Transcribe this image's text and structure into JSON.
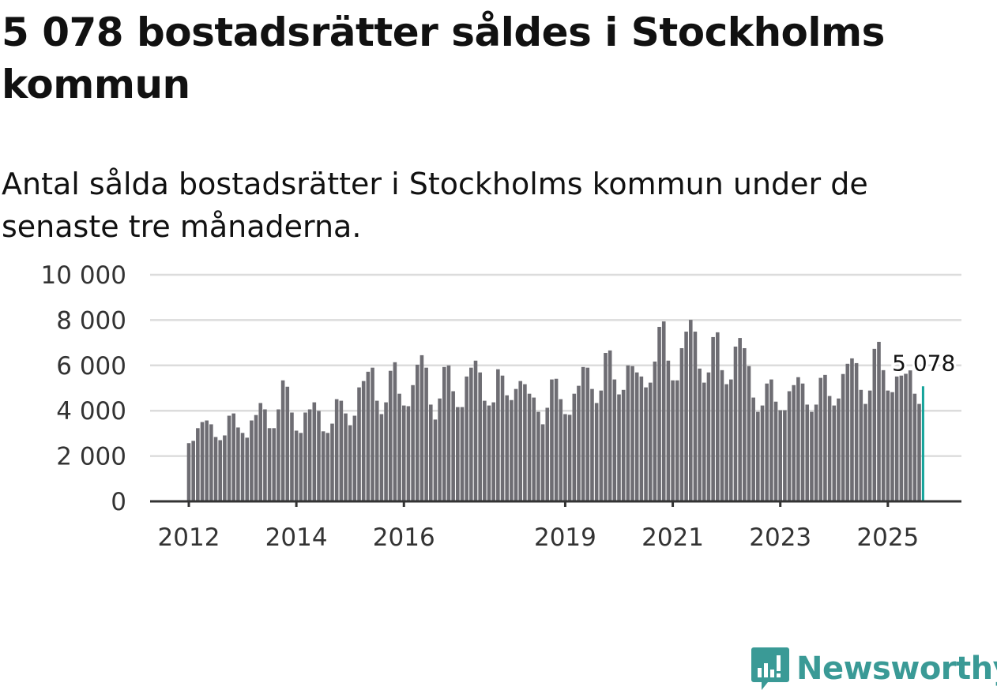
{
  "title": "5 078 bostadsrätter såldes i Stockholms kommun",
  "subtitle": "Antal sålda bostadsrätter i Stockholms kommun under de senaste tre månaderna.",
  "logo": {
    "text": "Newsworthy",
    "icon": "bar-chart-speech-bubble-icon",
    "color": "#3a9a96"
  },
  "chart_data": {
    "type": "bar",
    "title": "Antal sålda bostadsrätter i Stockholms kommun",
    "xlabel": "",
    "ylabel": "",
    "start": "2012-01",
    "frequency": "monthly",
    "ylim": [
      0,
      10000
    ],
    "yticks": [
      0,
      2000,
      4000,
      6000,
      8000,
      10000
    ],
    "ytick_labels": [
      "0",
      "2 000",
      "4 000",
      "6 000",
      "8 000",
      "10 000"
    ],
    "xticks": [
      {
        "label": "2012",
        "index": 0
      },
      {
        "label": "2014",
        "index": 24
      },
      {
        "label": "2016",
        "index": 48
      },
      {
        "label": "2019",
        "index": 84
      },
      {
        "label": "2021",
        "index": 108
      },
      {
        "label": "2023",
        "index": 132
      },
      {
        "label": "2025",
        "index": 156
      }
    ],
    "grid": true,
    "bar_color": "#6e6d73",
    "highlight_color": "#14a39a",
    "highlight_label": "5 078",
    "values": [
      2570,
      2670,
      3230,
      3500,
      3570,
      3400,
      2840,
      2700,
      2910,
      3780,
      3880,
      3260,
      3020,
      2810,
      3570,
      3810,
      4340,
      4060,
      3230,
      3230,
      4060,
      5340,
      5060,
      3920,
      3120,
      3020,
      3920,
      4060,
      4370,
      3990,
      3090,
      3020,
      3430,
      4510,
      4440,
      3880,
      3360,
      3780,
      5030,
      5310,
      5720,
      5900,
      4440,
      3850,
      4370,
      5760,
      6140,
      4750,
      4230,
      4200,
      5130,
      6030,
      6450,
      5900,
      4270,
      3610,
      4540,
      5930,
      6000,
      4860,
      4160,
      4160,
      5510,
      5900,
      6210,
      5690,
      4440,
      4230,
      4370,
      5830,
      5550,
      4680,
      4470,
      4960,
      5310,
      5170,
      4750,
      4580,
      3950,
      3400,
      4130,
      5380,
      5410,
      4510,
      3850,
      3820,
      4750,
      5100,
      5930,
      5900,
      4960,
      4340,
      4890,
      6550,
      6660,
      5380,
      4720,
      4920,
      6000,
      5970,
      5690,
      5510,
      5030,
      5240,
      6170,
      7700,
      7940,
      6210,
      5340,
      5340,
      6760,
      7490,
      8010,
      7490,
      5860,
      5240,
      5690,
      7250,
      7460,
      5790,
      5170,
      5380,
      6830,
      7210,
      6760,
      5970,
      4580,
      3950,
      4230,
      5200,
      5380,
      4400,
      4020,
      4020,
      4860,
      5130,
      5480,
      5200,
      4270,
      3950,
      4270,
      5450,
      5580,
      4650,
      4230,
      4540,
      5620,
      6070,
      6310,
      6100,
      4920,
      4300,
      4890,
      6730,
      7040,
      5790,
      4890,
      4820,
      5510,
      5550,
      5630,
      5780,
      4750,
      4300,
      5078
    ]
  }
}
